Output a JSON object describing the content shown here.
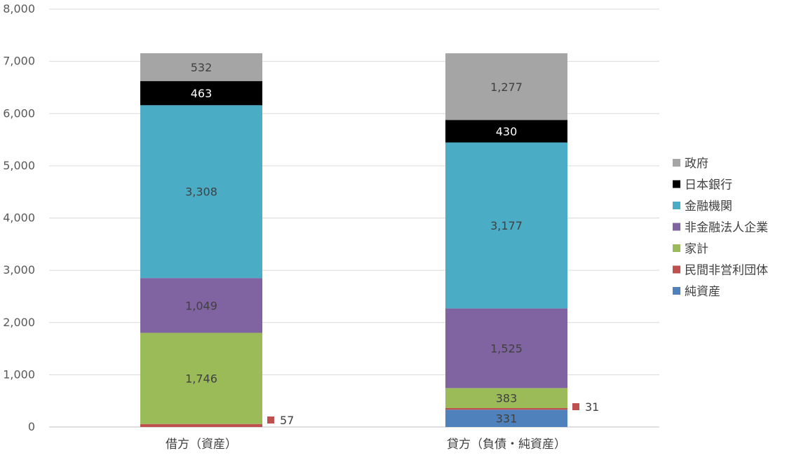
{
  "chart_data": {
    "type": "bar",
    "stacked": true,
    "categories": [
      "借方（資産）",
      "貸方（負債・純資産）"
    ],
    "ylim": [
      0,
      8000
    ],
    "yticks": [
      0,
      1000,
      2000,
      3000,
      4000,
      5000,
      6000,
      7000,
      8000
    ],
    "ytick_labels": [
      "0",
      "1,000",
      "2,000",
      "3,000",
      "4,000",
      "5,000",
      "6,000",
      "7,000",
      "8,000"
    ],
    "grid": true,
    "legend_position": "right",
    "series": [
      {
        "name": "純資産",
        "color": "#4f81bd",
        "values": [
          null,
          331
        ],
        "labels": [
          "",
          "331"
        ],
        "label_color": "#404040"
      },
      {
        "name": "民間非営利団体",
        "color": "#c0504d",
        "values": [
          57,
          31
        ],
        "labels": [
          "57",
          "31"
        ],
        "label_color": "#404040",
        "label_outside": true
      },
      {
        "name": "家計",
        "color": "#9bbb59",
        "values": [
          1746,
          383
        ],
        "labels": [
          "1,746",
          "383"
        ],
        "label_color": "#404040"
      },
      {
        "name": "非金融法人企業",
        "color": "#8064a2",
        "values": [
          1049,
          1525
        ],
        "labels": [
          "1,049",
          "1,525"
        ],
        "label_color": "#404040"
      },
      {
        "name": "金融機関",
        "color": "#4bacc6",
        "values": [
          3308,
          3177
        ],
        "labels": [
          "3,308",
          "3,177"
        ],
        "label_color": "#404040"
      },
      {
        "name": "日本銀行",
        "color": "#000000",
        "values": [
          463,
          430
        ],
        "labels": [
          "463",
          "430"
        ],
        "label_color": "#ffffff"
      },
      {
        "name": "政府",
        "color": "#a5a5a5",
        "values": [
          532,
          1277
        ],
        "labels": [
          "532",
          "1,277"
        ],
        "label_color": "#404040"
      }
    ],
    "legend_order": [
      "政府",
      "日本銀行",
      "金融機関",
      "非金融法人企業",
      "家計",
      "民間非営利団体",
      "純資産"
    ]
  }
}
